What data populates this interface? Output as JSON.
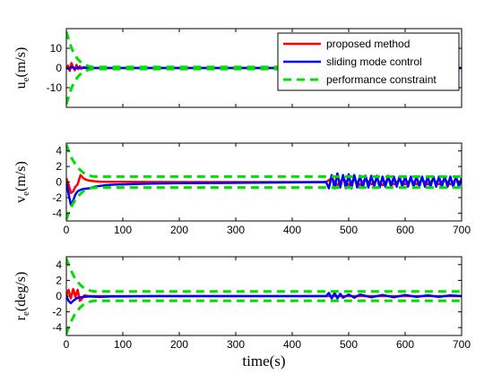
{
  "chart_data": [
    {
      "type": "line",
      "ylabel_main": "u",
      "ylabel_sub": "e",
      "ylabel_unit": "(m/s)",
      "xlim": [
        0,
        700
      ],
      "ylim": [
        -20,
        20
      ],
      "xticks": [
        0,
        100,
        200,
        300,
        400,
        500,
        600,
        700
      ],
      "yticks": [
        10,
        0,
        -10
      ],
      "show_xtick_labels": false,
      "legend": {
        "placement": "top-right",
        "entries": [
          "proposed method",
          "sliding mode control",
          "performance constraint"
        ]
      },
      "series": [
        {
          "name": "proposed method",
          "color": "#ff0000",
          "style": "solid",
          "x": [
            0,
            3,
            6,
            9,
            12,
            15,
            18,
            21,
            24,
            27,
            30,
            35,
            40,
            60,
            700
          ],
          "y": [
            0,
            1.2,
            -1.5,
            2.5,
            0.3,
            -1.2,
            1.6,
            -0.6,
            0.9,
            -0.3,
            0.4,
            0.1,
            0,
            0,
            0
          ]
        },
        {
          "name": "sliding mode control",
          "color": "#0000ff",
          "style": "solid",
          "x": [
            0,
            5,
            10,
            15,
            20,
            25,
            30,
            40,
            700
          ],
          "y": [
            0,
            -0.5,
            0.6,
            -0.4,
            0.3,
            -0.2,
            0.1,
            0,
            0
          ]
        },
        {
          "name": "performance constraint upper",
          "color": "#00e000",
          "style": "dashed",
          "x": [
            0,
            5,
            10,
            15,
            20,
            25,
            30,
            35,
            40,
            45,
            50,
            60,
            700
          ],
          "y": [
            18.5,
            13.5,
            9.6,
            6.7,
            4.6,
            3.1,
            2.0,
            1.3,
            0.85,
            0.6,
            0.5,
            0.5,
            0.5
          ]
        },
        {
          "name": "performance constraint lower",
          "color": "#00e000",
          "style": "dashed",
          "x": [
            0,
            5,
            10,
            15,
            20,
            25,
            30,
            35,
            40,
            45,
            50,
            60,
            700
          ],
          "y": [
            -18.5,
            -13.5,
            -9.6,
            -6.7,
            -4.6,
            -3.1,
            -2.0,
            -1.3,
            -0.85,
            -0.6,
            -0.5,
            -0.5,
            -0.5
          ]
        }
      ]
    },
    {
      "type": "line",
      "ylabel_main": "v",
      "ylabel_sub": "e",
      "ylabel_unit": "(m/s)",
      "xlim": [
        0,
        700
      ],
      "ylim": [
        -5,
        5
      ],
      "xticks": [
        0,
        100,
        200,
        300,
        400,
        500,
        600,
        700
      ],
      "yticks": [
        4,
        2,
        0,
        -2,
        -4
      ],
      "show_xtick_labels": true,
      "series": [
        {
          "name": "proposed method",
          "color": "#ff0000",
          "style": "solid",
          "x": [
            0,
            4,
            8,
            12,
            16,
            20,
            25,
            30,
            35,
            40,
            50,
            60,
            80,
            100,
            150,
            200,
            300,
            400,
            460,
            470,
            480,
            490,
            500,
            510,
            520,
            530,
            540,
            550,
            560,
            570,
            580,
            590,
            600,
            610,
            620,
            630,
            640,
            650,
            660,
            670,
            680,
            690,
            700
          ],
          "y": [
            0.5,
            -0.3,
            -1.4,
            -1.2,
            -0.6,
            -0.3,
            0.9,
            0.5,
            0.3,
            0.2,
            0.1,
            0.05,
            0.03,
            0.02,
            0.01,
            0,
            0,
            0,
            0,
            0.5,
            -0.4,
            0.5,
            -0.4,
            0.4,
            -0.4,
            0.4,
            -0.3,
            0.3,
            -0.4,
            0.4,
            -0.3,
            0.3,
            -0.3,
            0.3,
            -0.3,
            0.3,
            -0.3,
            0.3,
            -0.3,
            0.3,
            -0.3,
            0.3,
            -0.2
          ]
        },
        {
          "name": "sliding mode control",
          "color": "#0000ff",
          "style": "solid",
          "x": [
            0,
            4,
            8,
            12,
            16,
            20,
            25,
            30,
            40,
            50,
            60,
            70,
            80,
            100,
            120,
            150,
            200,
            300,
            400,
            460,
            465,
            470,
            475,
            480,
            485,
            490,
            495,
            500,
            505,
            510,
            515,
            520,
            525,
            530,
            535,
            540,
            545,
            550,
            555,
            560,
            565,
            570,
            575,
            580,
            585,
            590,
            595,
            600,
            605,
            610,
            615,
            620,
            625,
            630,
            635,
            640,
            645,
            650,
            655,
            660,
            665,
            670,
            675,
            680,
            685,
            690,
            695,
            700
          ],
          "y": [
            0,
            -1.5,
            -2.9,
            -2.4,
            -1.6,
            -1.2,
            -1.0,
            -0.9,
            -0.8,
            -0.6,
            -0.5,
            -0.4,
            -0.35,
            -0.3,
            -0.25,
            -0.2,
            -0.15,
            -0.1,
            -0.05,
            0,
            -0.8,
            0.9,
            -0.8,
            1.1,
            -0.7,
            0.9,
            -0.8,
            1.0,
            -0.8,
            0.9,
            -0.7,
            0.8,
            -0.7,
            0.8,
            -0.7,
            0.8,
            -0.6,
            0.8,
            -0.7,
            0.7,
            -0.6,
            0.8,
            -0.6,
            0.7,
            -0.6,
            0.7,
            -0.6,
            0.7,
            -0.6,
            0.7,
            -0.6,
            0.7,
            -0.6,
            0.7,
            -0.6,
            0.7,
            -0.6,
            0.7,
            -0.6,
            0.7,
            -0.6,
            0.7,
            -0.6,
            0.7,
            -0.6,
            0.7,
            -0.6,
            0.5
          ]
        },
        {
          "name": "performance constraint upper",
          "color": "#00e000",
          "style": "dashed",
          "x": [
            0,
            5,
            10,
            15,
            20,
            25,
            30,
            35,
            40,
            45,
            50,
            60,
            700
          ],
          "y": [
            4.8,
            3.8,
            3.0,
            2.4,
            1.9,
            1.5,
            1.2,
            1.0,
            0.85,
            0.75,
            0.7,
            0.7,
            0.7
          ]
        },
        {
          "name": "performance constraint lower",
          "color": "#00e000",
          "style": "dashed",
          "x": [
            0,
            5,
            10,
            15,
            20,
            25,
            30,
            35,
            40,
            45,
            50,
            60,
            700
          ],
          "y": [
            -4.8,
            -3.8,
            -3.0,
            -2.4,
            -1.9,
            -1.5,
            -1.2,
            -1.0,
            -0.85,
            -0.75,
            -0.7,
            -0.7,
            -0.7
          ]
        }
      ]
    },
    {
      "type": "line",
      "ylabel_main": "r",
      "ylabel_sub": "e",
      "ylabel_unit": "(deg/s)",
      "xlim": [
        0,
        700
      ],
      "ylim": [
        -5,
        5
      ],
      "xticks": [
        0,
        100,
        200,
        300,
        400,
        500,
        600,
        700
      ],
      "yticks": [
        4,
        2,
        0,
        -2,
        -4
      ],
      "show_xtick_labels": true,
      "xlabel": "time(s)",
      "series": [
        {
          "name": "proposed method",
          "color": "#ff0000",
          "style": "solid",
          "x": [
            0,
            4,
            8,
            12,
            16,
            20,
            24,
            28,
            32,
            36,
            40,
            50,
            700
          ],
          "y": [
            0,
            0.8,
            -0.3,
            0.9,
            -0.1,
            0.8,
            -0.6,
            -0.3,
            0.1,
            0.05,
            0,
            0,
            0
          ]
        },
        {
          "name": "sliding mode control",
          "color": "#0000ff",
          "style": "solid",
          "x": [
            0,
            4,
            8,
            12,
            16,
            20,
            30,
            40,
            60,
            80,
            100,
            150,
            200,
            460,
            465,
            470,
            475,
            480,
            485,
            490,
            500,
            510,
            520,
            540,
            560,
            580,
            600,
            620,
            640,
            660,
            680,
            700
          ],
          "y": [
            0,
            -0.6,
            -0.9,
            -0.6,
            -0.4,
            -0.2,
            -0.1,
            -0.05,
            -0.1,
            -0.05,
            -0.05,
            0,
            0,
            0,
            0.4,
            -0.3,
            0.4,
            -0.3,
            0.3,
            -0.2,
            0.2,
            -0.2,
            0.2,
            -0.15,
            0.15,
            -0.15,
            0.15,
            -0.1,
            0.1,
            -0.1,
            0.1,
            0
          ]
        },
        {
          "name": "performance constraint upper",
          "color": "#00e000",
          "style": "dashed",
          "x": [
            0,
            5,
            10,
            15,
            20,
            25,
            30,
            35,
            40,
            45,
            50,
            60,
            700
          ],
          "y": [
            4.8,
            3.8,
            3.0,
            2.3,
            1.8,
            1.4,
            1.1,
            0.9,
            0.75,
            0.65,
            0.6,
            0.6,
            0.6
          ]
        },
        {
          "name": "performance constraint lower",
          "color": "#00e000",
          "style": "dashed",
          "x": [
            0,
            5,
            10,
            15,
            20,
            25,
            30,
            35,
            40,
            45,
            50,
            60,
            700
          ],
          "y": [
            -4.8,
            -3.8,
            -3.0,
            -2.3,
            -1.8,
            -1.4,
            -1.1,
            -0.9,
            -0.75,
            -0.65,
            -0.6,
            -0.6,
            -0.6
          ]
        }
      ]
    }
  ]
}
